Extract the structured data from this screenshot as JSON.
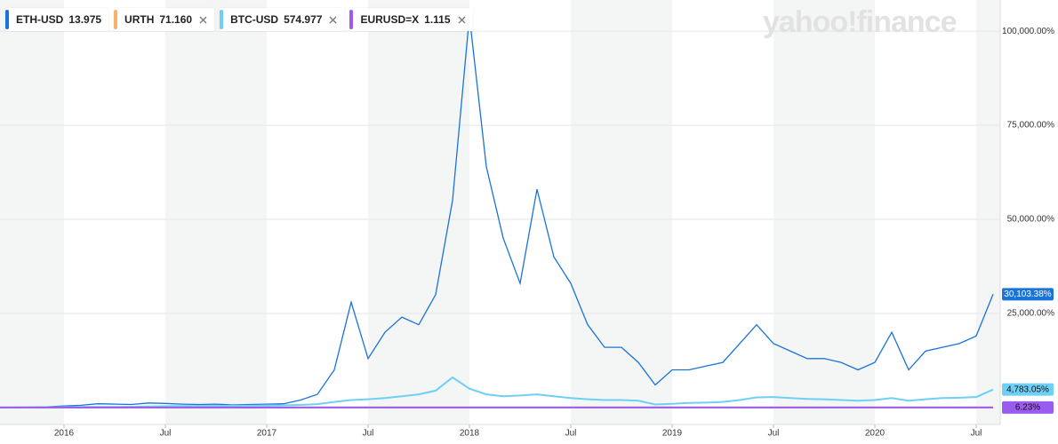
{
  "chart_data": {
    "type": "line",
    "watermark": "yahoo!finance",
    "categories": [
      null,
      null,
      null,
      null,
      "2016",
      null,
      null,
      null,
      null,
      null,
      "Jul",
      null,
      null,
      null,
      null,
      null,
      "2017",
      null,
      null,
      null,
      null,
      null,
      "Jul",
      null,
      null,
      null,
      null,
      null,
      "2018",
      null,
      null,
      null,
      null,
      null,
      "Jul",
      null,
      null,
      null,
      null,
      null,
      "2019",
      null,
      null,
      null,
      null,
      null,
      "Jul",
      null,
      null,
      null,
      null,
      null,
      "2020",
      null,
      null,
      null,
      null,
      null,
      "Jul",
      null
    ],
    "series": [
      {
        "name": "ETH-USD",
        "quote": "13.975",
        "color": "#1a73d9",
        "end_label": "30,103.38%",
        "values": [
          0,
          50,
          100,
          200,
          400,
          600,
          1000,
          900,
          800,
          1200,
          1100,
          900,
          800,
          900,
          700,
          800,
          900,
          1000,
          2000,
          3500,
          10000,
          28000,
          13000,
          20000,
          24000,
          22000,
          30000,
          55000,
          104000,
          64000,
          45000,
          33000,
          58000,
          40000,
          33000,
          22000,
          16000,
          16000,
          12000,
          6000,
          10000,
          10000,
          11000,
          12000,
          17000,
          22000,
          17000,
          15000,
          13000,
          13000,
          12000,
          10000,
          12000,
          20000,
          10000,
          15000,
          16000,
          17000,
          19000,
          30103.38
        ]
      },
      {
        "name": "URTH",
        "quote": "71.160",
        "color": "#f7b26a",
        "removable": true,
        "values": [
          0,
          -5,
          2,
          4,
          -3,
          -6,
          0,
          3,
          5,
          2,
          6,
          7,
          8,
          9,
          10,
          12,
          14,
          16,
          18,
          20,
          22,
          24,
          25,
          27,
          29,
          30,
          32,
          34,
          36,
          30,
          28,
          29,
          31,
          32,
          34,
          36,
          38,
          30,
          31,
          24,
          28,
          32,
          34,
          37,
          35,
          38,
          39,
          37,
          40,
          42,
          44,
          46,
          48,
          44,
          30,
          36,
          40,
          42,
          44,
          45
        ]
      },
      {
        "name": "BTC-USD",
        "quote": "574.977",
        "color": "#6ed0f6",
        "removable": true,
        "end_label": "4,783.05%",
        "values": [
          0,
          20,
          50,
          80,
          120,
          150,
          160,
          170,
          200,
          300,
          350,
          400,
          420,
          430,
          450,
          480,
          500,
          600,
          700,
          900,
          1500,
          2000,
          2200,
          2500,
          3000,
          3500,
          4500,
          8000,
          5000,
          3500,
          3000,
          3200,
          3500,
          3000,
          2500,
          2200,
          2000,
          2000,
          1800,
          800,
          1000,
          1200,
          1300,
          1500,
          2000,
          2700,
          2800,
          2500,
          2300,
          2200,
          2000,
          1800,
          2000,
          2500,
          1800,
          2200,
          2500,
          2600,
          2800,
          4783.05
        ]
      },
      {
        "name": "EURUSD=X",
        "quote": "1.115",
        "color": "#9a5cf0",
        "removable": true,
        "end_label": "6.23%",
        "values": [
          0,
          -1,
          -2,
          -3,
          -1,
          0,
          2,
          3,
          2,
          1,
          0,
          -1,
          -2,
          -4,
          -5,
          -6,
          -5,
          -4,
          -3,
          -2,
          0,
          2,
          5,
          7,
          8,
          6,
          7,
          8,
          11,
          12,
          11,
          10,
          6,
          5,
          5,
          4,
          3,
          3,
          2,
          1,
          2,
          1,
          0,
          0,
          1,
          0,
          0,
          -1,
          -1,
          -1,
          0,
          0,
          1,
          0,
          -1,
          0,
          1,
          3,
          5,
          6.23
        ]
      }
    ],
    "ylim": [
      -4500,
      106400
    ],
    "yticks": [
      {
        "value": 25000,
        "label": "25,000.00%"
      },
      {
        "value": 50000,
        "label": "50,000.00%"
      },
      {
        "value": 75000,
        "label": "75,000.00%"
      },
      {
        "value": 100000,
        "label": "100,000.00%"
      }
    ],
    "grid": true
  }
}
